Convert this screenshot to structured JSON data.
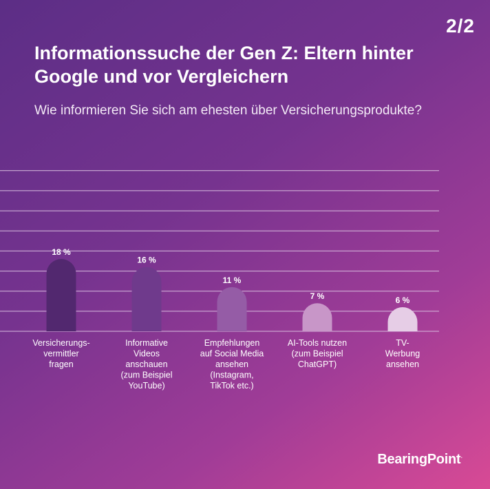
{
  "page_number": "2/2",
  "title": "Informationssuche der Gen Z: Eltern hinter Google und vor Vergleichern",
  "subtitle": "Wie informieren Sie sich am ehesten über Versicherungsprodukte?",
  "brand": "BearingPoint",
  "brand_mark": ".",
  "colors": {
    "background_start": "#5c2e86",
    "background_end": "#d84a95",
    "gridline": "#d9bfe0",
    "bar_colors": [
      "#52286f",
      "#6f3a8c",
      "#955ca6",
      "#c896c8",
      "#e6cde6"
    ]
  },
  "chart_data": {
    "type": "bar",
    "categories": [
      "Versicherungs-\nvermittler\nfragen",
      "Informative\nVideos\nanschauen\n(zum Beispiel\nYouTube)",
      "Empfehlungen\nauf Social Media\nansehen\n(Instagram,\nTikTok etc.)",
      "AI-Tools nutzen\n(zum Beispiel\nChatGPT)",
      "TV-\nWerbung\nansehen"
    ],
    "values": [
      18,
      16,
      11,
      7,
      6
    ],
    "value_labels": [
      "18 %",
      "16 %",
      "11 %",
      "7 %",
      "6 %"
    ],
    "ylim": [
      0,
      40
    ],
    "grid": true,
    "xlabel": "",
    "ylabel": ""
  }
}
